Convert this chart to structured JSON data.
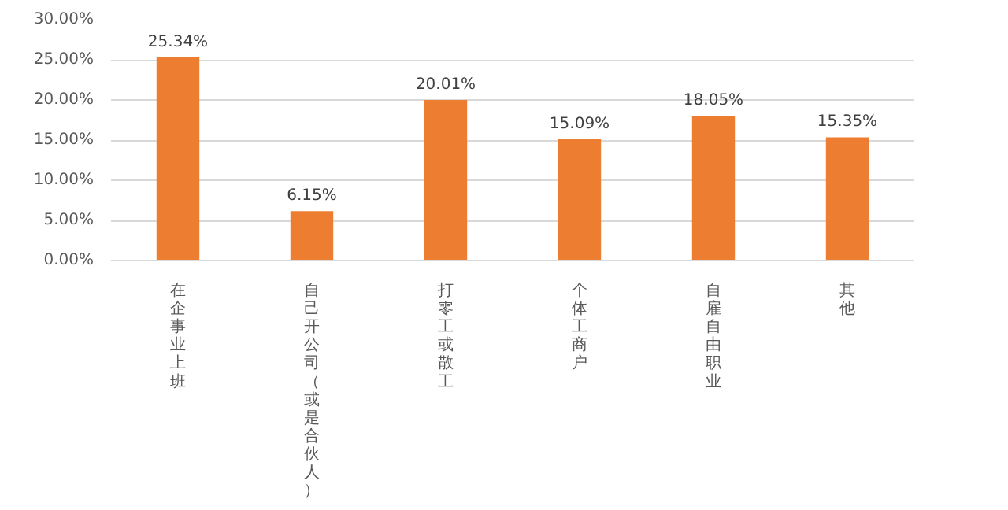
{
  "chart_data": {
    "type": "bar",
    "categories": [
      "在企事业上班",
      "自己开公司（或是合伙人）",
      "打零工或散工",
      "个体工商户",
      "自雇自由职业",
      "其他"
    ],
    "values": [
      25.34,
      6.15,
      20.01,
      15.09,
      18.05,
      15.35
    ],
    "value_labels": [
      "25.34%",
      "6.15%",
      "20.01%",
      "15.09%",
      "18.05%",
      "15.35%"
    ],
    "color": "#ed7d31",
    "ylim": [
      0,
      30
    ],
    "yticks": [
      {
        "value": 0,
        "label": "0.00%"
      },
      {
        "value": 5,
        "label": "5.00%"
      },
      {
        "value": 10,
        "label": "10.00%"
      },
      {
        "value": 15,
        "label": "15.00%"
      },
      {
        "value": 20,
        "label": "20.00%"
      },
      {
        "value": 25,
        "label": "25.00%"
      },
      {
        "value": 30,
        "label": "30.00%"
      }
    ],
    "grid": "y"
  }
}
